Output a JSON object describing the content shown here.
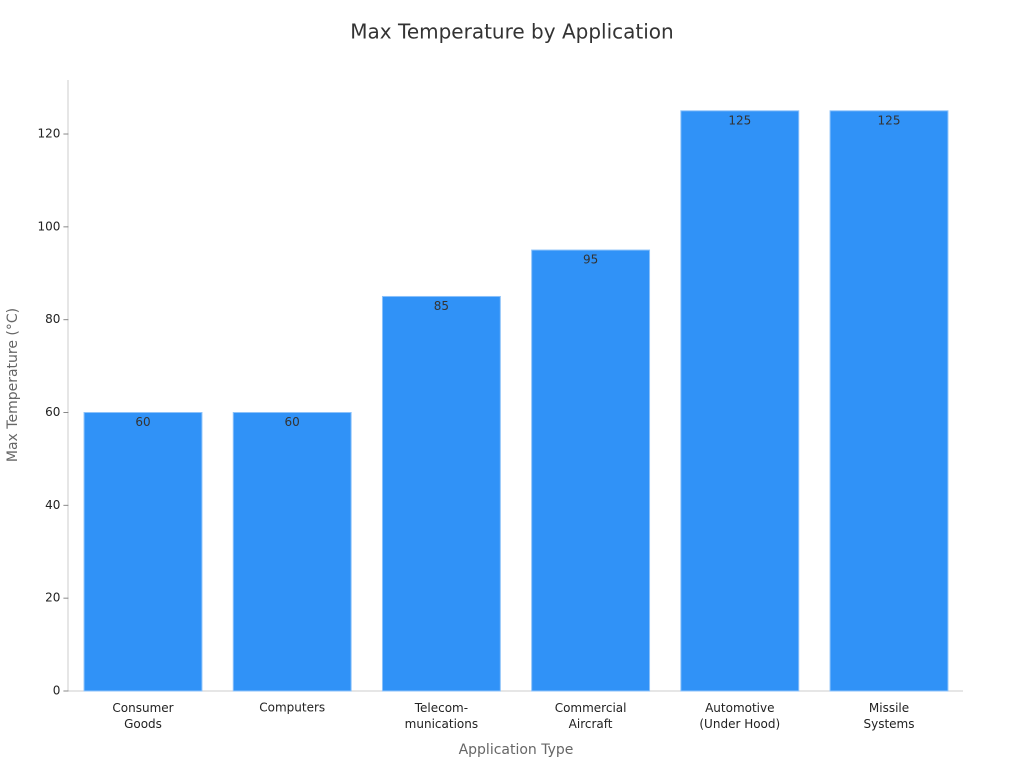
{
  "chart_data": {
    "type": "bar",
    "title": "Max Temperature by Application",
    "x_label": "Application Type",
    "y_label": "Max Temperature (°C)",
    "categories": [
      "Consumer\nGoods",
      "Computers",
      "Telecom-\nmunications",
      "Commercial\nAircraft",
      "Automotive\n(Under Hood)",
      "Missile\nSystems"
    ],
    "values": [
      60,
      60,
      85,
      95,
      125,
      125
    ],
    "color": "#3092f7",
    "ylim": [
      0,
      131.25
    ],
    "yticks": [
      0,
      20,
      40,
      60,
      80,
      100,
      120
    ],
    "grid": false
  }
}
